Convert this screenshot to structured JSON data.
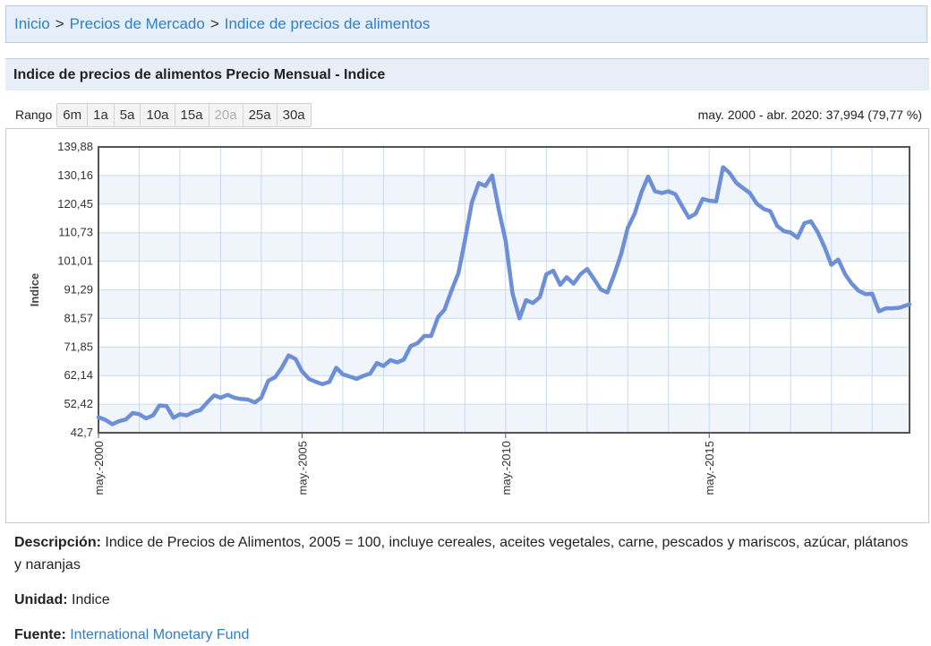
{
  "breadcrumb": {
    "home": "Inicio",
    "sep": ">",
    "market": "Precios de Mercado",
    "current": "Indice de precios de alimentos"
  },
  "section_title": "Indice de precios de alimentos Precio Mensual - Indice",
  "range": {
    "label": "Rango",
    "buttons": [
      "6m",
      "1a",
      "5a",
      "10a",
      "15a",
      "20a",
      "25a",
      "30a"
    ],
    "disabled": [
      "20a"
    ],
    "summary": "may. 2000 - abr. 2020: 37,994 (79,77 %)"
  },
  "colors": {
    "line": "#6d8fd6",
    "grid": "#c7d9f1",
    "band": "#f0f4fb",
    "link": "#2f7fc1"
  },
  "chart_data": {
    "type": "line",
    "ylabel": "Indice",
    "yticks": [
      "139,88",
      "130,16",
      "120,45",
      "110,73",
      "101,01",
      "91,29",
      "81,57",
      "71,85",
      "62,14",
      "52,42",
      "42,7"
    ],
    "ylim": [
      42.7,
      139.88
    ],
    "xlabels": [
      "may.-2000",
      "may.-2005",
      "may.-2010",
      "may.-2015"
    ],
    "xlim": [
      2000.33,
      2020.25
    ],
    "grid": true,
    "series": [
      {
        "points": [
          [
            2000.33,
            48.0
          ],
          [
            2000.5,
            47.1
          ],
          [
            2000.67,
            45.6
          ],
          [
            2000.83,
            46.6
          ],
          [
            2001.0,
            47.2
          ],
          [
            2001.17,
            49.4
          ],
          [
            2001.33,
            49.0
          ],
          [
            2001.5,
            47.6
          ],
          [
            2001.67,
            48.6
          ],
          [
            2001.83,
            52.0
          ],
          [
            2002.0,
            51.8
          ],
          [
            2002.17,
            47.8
          ],
          [
            2002.33,
            49.0
          ],
          [
            2002.5,
            48.6
          ],
          [
            2002.67,
            49.8
          ],
          [
            2002.83,
            50.4
          ],
          [
            2003.0,
            53.0
          ],
          [
            2003.17,
            55.4
          ],
          [
            2003.33,
            54.6
          ],
          [
            2003.5,
            55.6
          ],
          [
            2003.67,
            54.6
          ],
          [
            2003.83,
            54.2
          ],
          [
            2004.0,
            54.0
          ],
          [
            2004.17,
            53.0
          ],
          [
            2004.33,
            54.6
          ],
          [
            2004.5,
            60.4
          ],
          [
            2004.67,
            61.6
          ],
          [
            2004.83,
            64.8
          ],
          [
            2005.0,
            69.0
          ],
          [
            2005.17,
            67.8
          ],
          [
            2005.33,
            63.6
          ],
          [
            2005.5,
            61.0
          ],
          [
            2005.67,
            60.0
          ],
          [
            2005.83,
            59.2
          ],
          [
            2006.0,
            60.0
          ],
          [
            2006.17,
            64.8
          ],
          [
            2006.33,
            62.6
          ],
          [
            2006.5,
            61.8
          ],
          [
            2006.67,
            61.0
          ],
          [
            2006.83,
            62.0
          ],
          [
            2007.0,
            62.8
          ],
          [
            2007.17,
            66.4
          ],
          [
            2007.33,
            65.4
          ],
          [
            2007.5,
            67.4
          ],
          [
            2007.67,
            66.6
          ],
          [
            2007.83,
            67.6
          ],
          [
            2008.0,
            72.2
          ],
          [
            2008.17,
            73.2
          ],
          [
            2008.33,
            75.6
          ],
          [
            2008.5,
            75.6
          ],
          [
            2008.67,
            82.0
          ],
          [
            2008.83,
            84.6
          ],
          [
            2009.0,
            91.0
          ],
          [
            2009.17,
            97.0
          ],
          [
            2009.33,
            108.0
          ],
          [
            2009.5,
            121.0
          ],
          [
            2009.67,
            127.6
          ],
          [
            2009.83,
            126.6
          ],
          [
            2010.0,
            130.2
          ],
          [
            2010.17,
            118.0
          ],
          [
            2010.33,
            108.0
          ],
          [
            2010.5,
            90.0
          ],
          [
            2010.67,
            81.6
          ],
          [
            2010.83,
            87.8
          ],
          [
            2011.0,
            86.8
          ],
          [
            2011.17,
            88.8
          ],
          [
            2011.33,
            96.6
          ],
          [
            2011.5,
            97.8
          ],
          [
            2011.67,
            93.0
          ],
          [
            2011.83,
            95.6
          ],
          [
            2012.0,
            93.4
          ],
          [
            2012.17,
            96.6
          ],
          [
            2012.33,
            98.4
          ],
          [
            2012.5,
            95.0
          ],
          [
            2012.67,
            91.4
          ],
          [
            2012.83,
            90.4
          ],
          [
            2013.0,
            96.6
          ],
          [
            2013.17,
            103.6
          ],
          [
            2013.33,
            112.4
          ],
          [
            2013.5,
            117.2
          ],
          [
            2013.67,
            124.6
          ],
          [
            2013.83,
            129.8
          ],
          [
            2014.0,
            124.8
          ],
          [
            2014.17,
            124.2
          ],
          [
            2014.33,
            124.8
          ],
          [
            2014.5,
            123.8
          ],
          [
            2014.67,
            119.6
          ],
          [
            2014.83,
            115.8
          ],
          [
            2015.0,
            117.2
          ],
          [
            2015.17,
            122.2
          ],
          [
            2015.33,
            121.6
          ],
          [
            2015.5,
            121.4
          ],
          [
            2015.67,
            133.0
          ],
          [
            2015.83,
            131.0
          ],
          [
            2016.0,
            127.6
          ],
          [
            2016.17,
            125.8
          ],
          [
            2016.33,
            124.2
          ],
          [
            2016.5,
            120.6
          ],
          [
            2016.67,
            118.8
          ],
          [
            2016.83,
            118.0
          ],
          [
            2017.0,
            113.0
          ],
          [
            2017.17,
            111.2
          ],
          [
            2017.33,
            110.8
          ],
          [
            2017.5,
            109.0
          ],
          [
            2017.67,
            114.0
          ],
          [
            2017.83,
            114.6
          ],
          [
            2018.0,
            110.8
          ],
          [
            2018.17,
            105.6
          ],
          [
            2018.33,
            99.8
          ],
          [
            2018.5,
            101.6
          ],
          [
            2018.67,
            96.6
          ],
          [
            2018.83,
            93.4
          ],
          [
            2019.0,
            91.0
          ],
          [
            2019.17,
            89.8
          ],
          [
            2019.33,
            90.0
          ],
          [
            2019.5,
            84.0
          ],
          [
            2019.67,
            85.0
          ],
          [
            2019.83,
            85.0
          ],
          [
            2020.0,
            85.2
          ],
          [
            2020.25,
            86.4
          ]
        ]
      }
    ]
  },
  "description": {
    "label": "Descripción:",
    "text": "Indice de Precios de Alimentos, 2005 = 100, incluye cereales, aceites vegetales, carne, pescados y mariscos, azúcar, plátanos y naranjas"
  },
  "unit": {
    "label": "Unidad:",
    "text": "Indice"
  },
  "source": {
    "label": "Fuente:",
    "text": "International Monetary Fund"
  }
}
